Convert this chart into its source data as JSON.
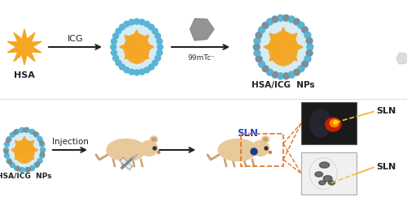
{
  "background_color": "#ffffff",
  "title_row1": {
    "hsa_label": "HSA",
    "icg_label": "ICG",
    "tc_label": "99mTc⁻",
    "np_label": "HSA/ICG  NPs"
  },
  "title_row2": {
    "np_label": "HSA/ICG  NPs",
    "injection_label": "Injection",
    "sln_label": "SLN",
    "sln_text1": "SLN",
    "sln_text2": "SLN"
  },
  "colors": {
    "orange_star": "#f5a623",
    "blue_circle": "#5ab4d6",
    "orange_blob": "#f5a623",
    "gray_crystal": "#888888",
    "arrow_black": "#222222",
    "mouse_body": "#e8c99a",
    "mouse_dark": "#c8a070",
    "orange_dashed": "#e87020",
    "yellow_dashed": "#f0c040",
    "dot_blue": "#1a3a8a"
  },
  "layout": {
    "fig_width": 5.0,
    "fig_height": 2.48,
    "dpi": 100
  }
}
